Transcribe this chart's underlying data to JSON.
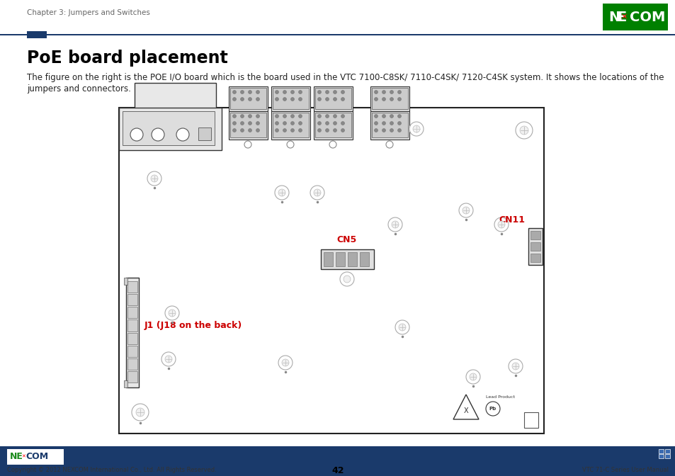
{
  "page_bg": "#ffffff",
  "header_text": "Chapter 3: Jumpers and Switches",
  "header_text_color": "#666666",
  "header_line_color": "#1a3a6b",
  "header_accent_color": "#1a3a6b",
  "title": "PoE board placement",
  "body_line1": "The figure on the right is the POE I/O board which is the board used in the VTC 7100-C8SK/ 7110-C4SK/ 7120-C4SK system. It shows the locations of the",
  "body_line2": "jumpers and connectors.",
  "cn5_label": "CN5",
  "cn11_label": "CN11",
  "j1_label": "J1 (J18 on the back)",
  "label_color": "#cc0000",
  "board_edge": "#222222",
  "board_fill": "#ffffff",
  "footer_bg": "#1a3a6b",
  "footer_copyright": "Copyright © 2012 NEXCOM International Co., Ltd. All Rights Reserved.",
  "footer_page": "42",
  "footer_manual": "VTC 71-C Series User Manual",
  "nexcom_green": "#008000",
  "nexcom_blue": "#1a3a6b"
}
